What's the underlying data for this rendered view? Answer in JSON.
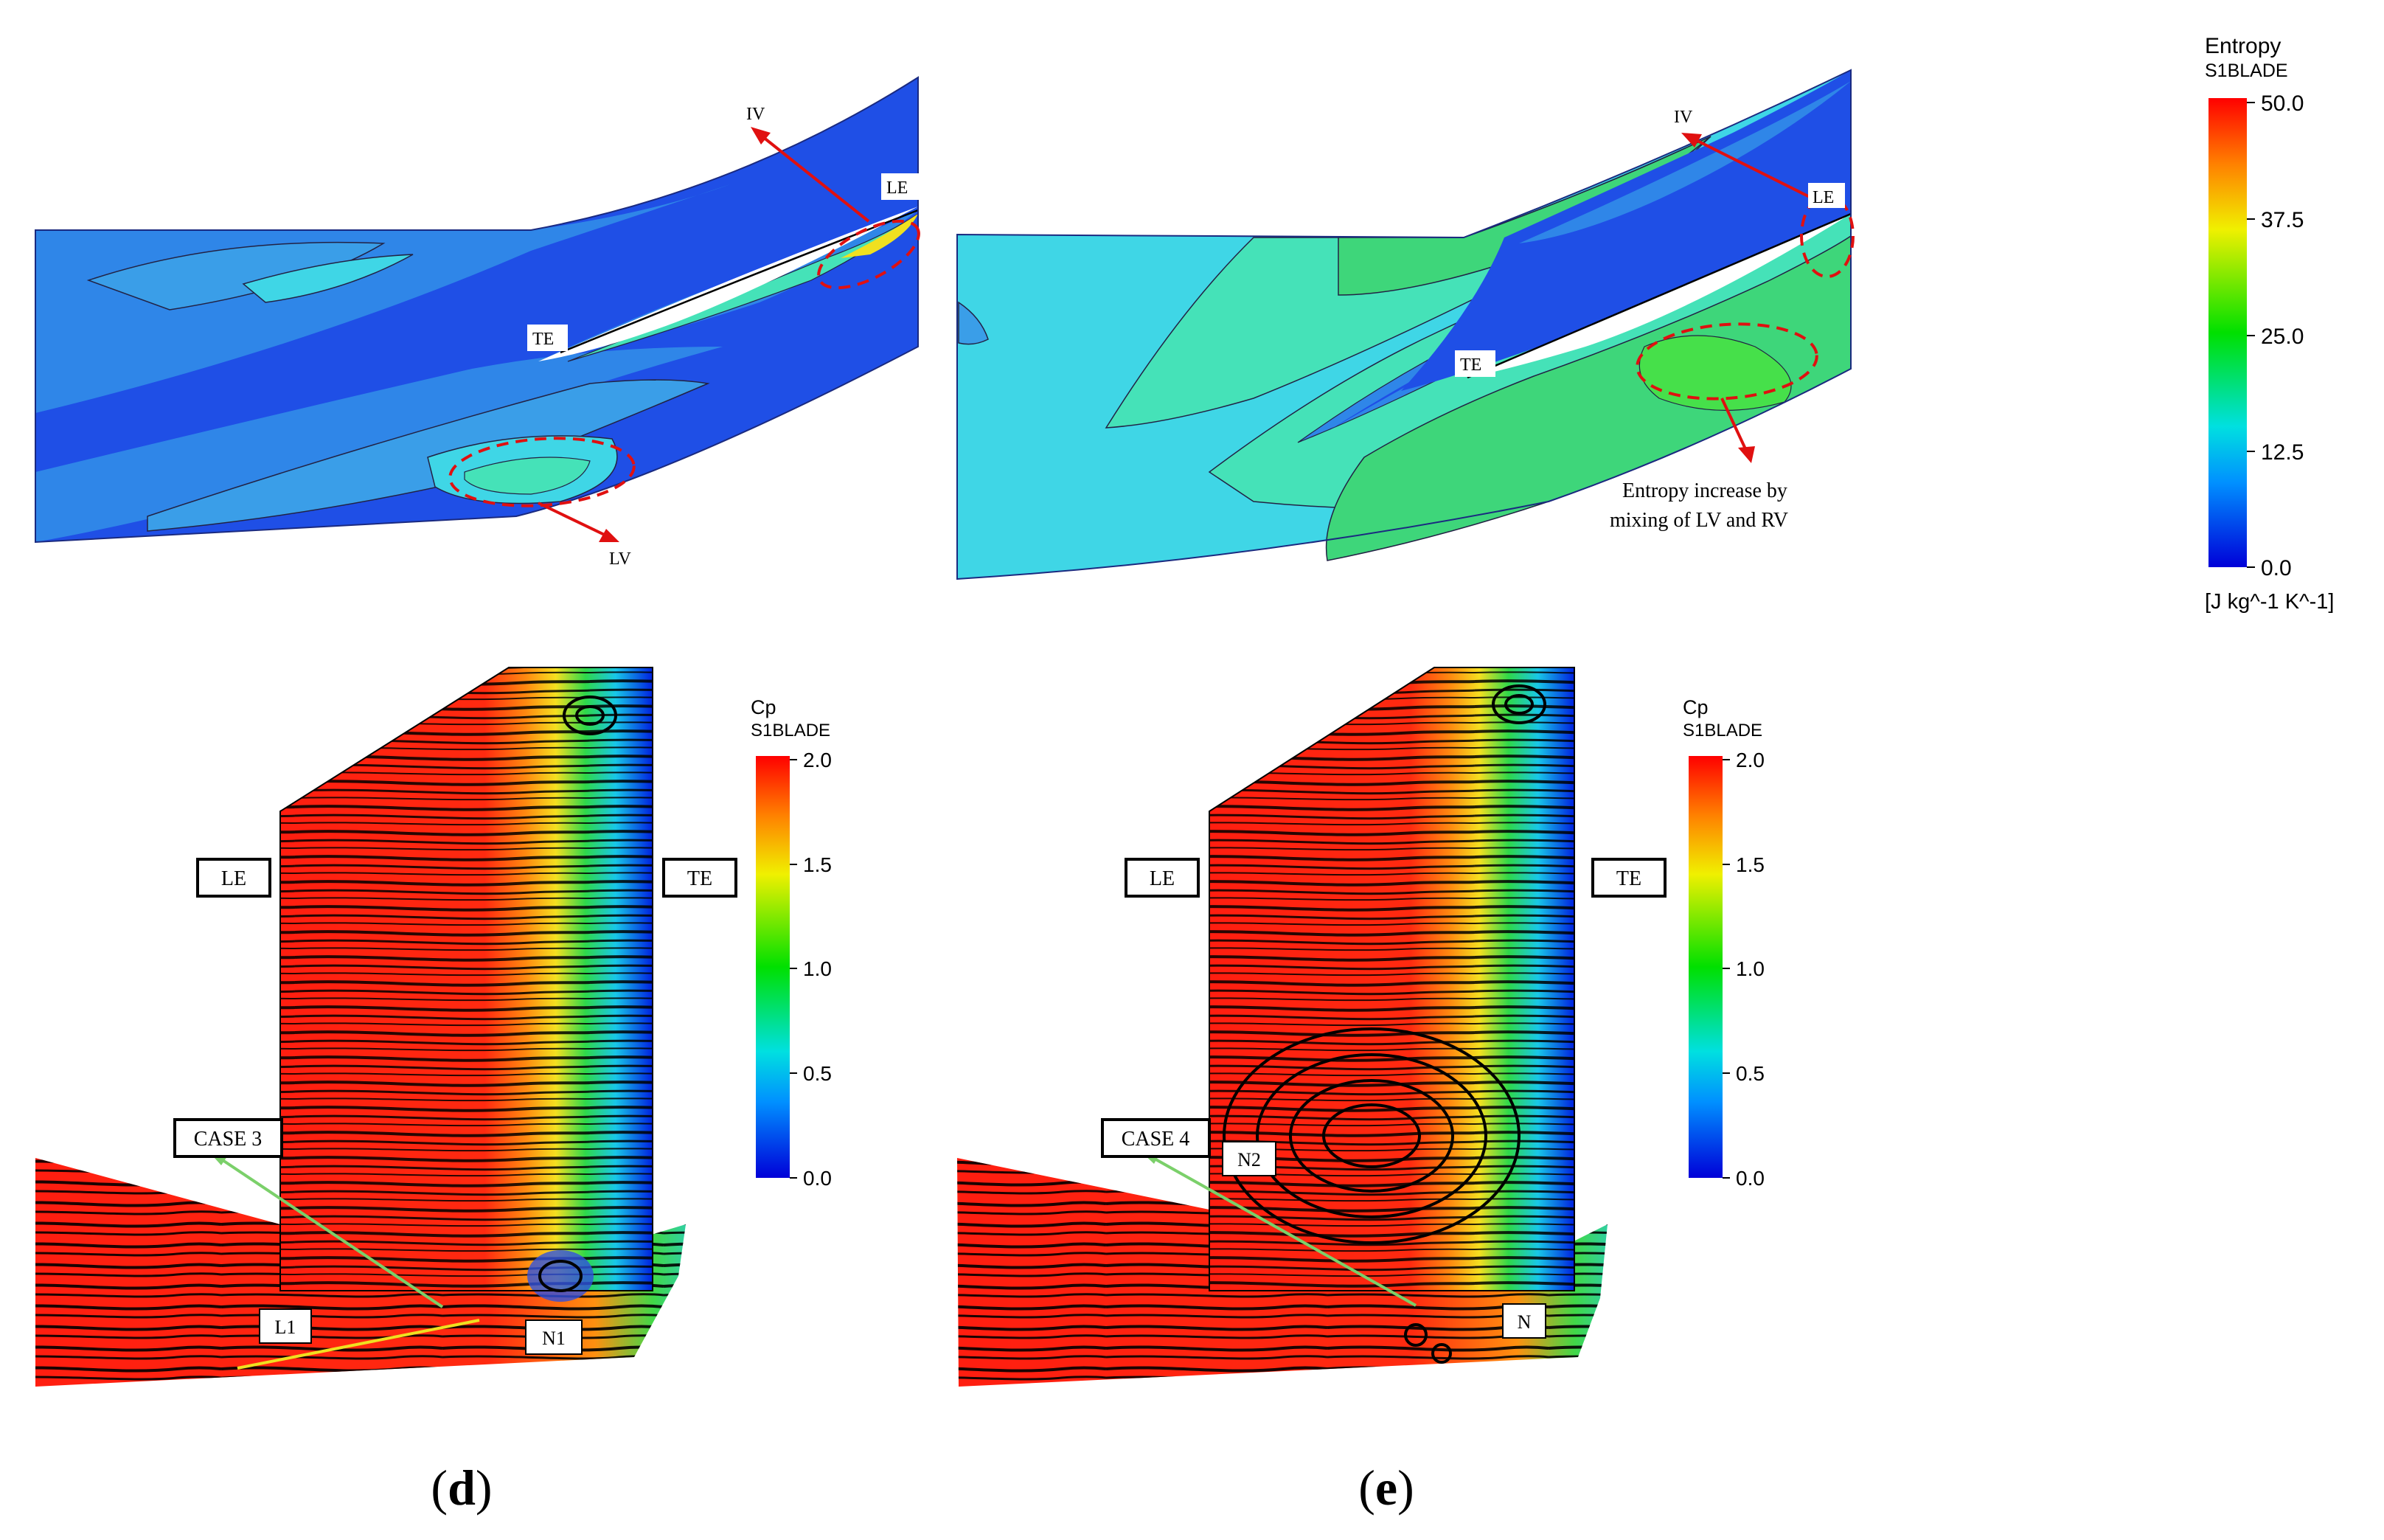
{
  "entropy_colorbar": {
    "title": "Entropy",
    "subtitle": "S1BLADE",
    "ticks": [
      "50.0",
      "37.5",
      "25.0",
      "12.5",
      "0.0"
    ],
    "unit": "[J kg^-1 K^-1]"
  },
  "cp_colorbar": {
    "title": "Cp",
    "subtitle": "S1BLADE",
    "ticks": [
      "2.0",
      "1.5",
      "1.0",
      "0.5",
      "0.0"
    ]
  },
  "panel_top_left": {
    "labels": {
      "iv": "IV",
      "le": "LE",
      "te": "TE",
      "lv": "LV"
    }
  },
  "panel_top_right": {
    "labels": {
      "iv": "IV",
      "le": "LE",
      "te": "TE"
    },
    "annotation_line1": "Entropy increase by",
    "annotation_line2": "mixing of  LV and RV"
  },
  "panel_d": {
    "labels": {
      "le": "LE",
      "te": "TE",
      "case": "CASE 3",
      "l1": "L1",
      "n1": "N1"
    },
    "caption_open": "(",
    "caption_letter": "d",
    "caption_close": ")"
  },
  "panel_e": {
    "labels": {
      "le": "LE",
      "te": "TE",
      "case": "CASE 4",
      "n2": "N2",
      "n": "N"
    },
    "caption_open": "(",
    "caption_letter": "e",
    "caption_close": ")"
  },
  "colors": {
    "contour_dark_blue": "#1f4fe6",
    "contour_mid_blue": "#2f86e8",
    "contour_cyan": "#3fd6e6",
    "contour_teal": "#45e2b8",
    "contour_green": "#3ed67a",
    "blade_red": "#ff2a10",
    "annotation_red": "#e01010",
    "arrow_green": "#7bd06a",
    "line_yellow": "#f0e020"
  }
}
